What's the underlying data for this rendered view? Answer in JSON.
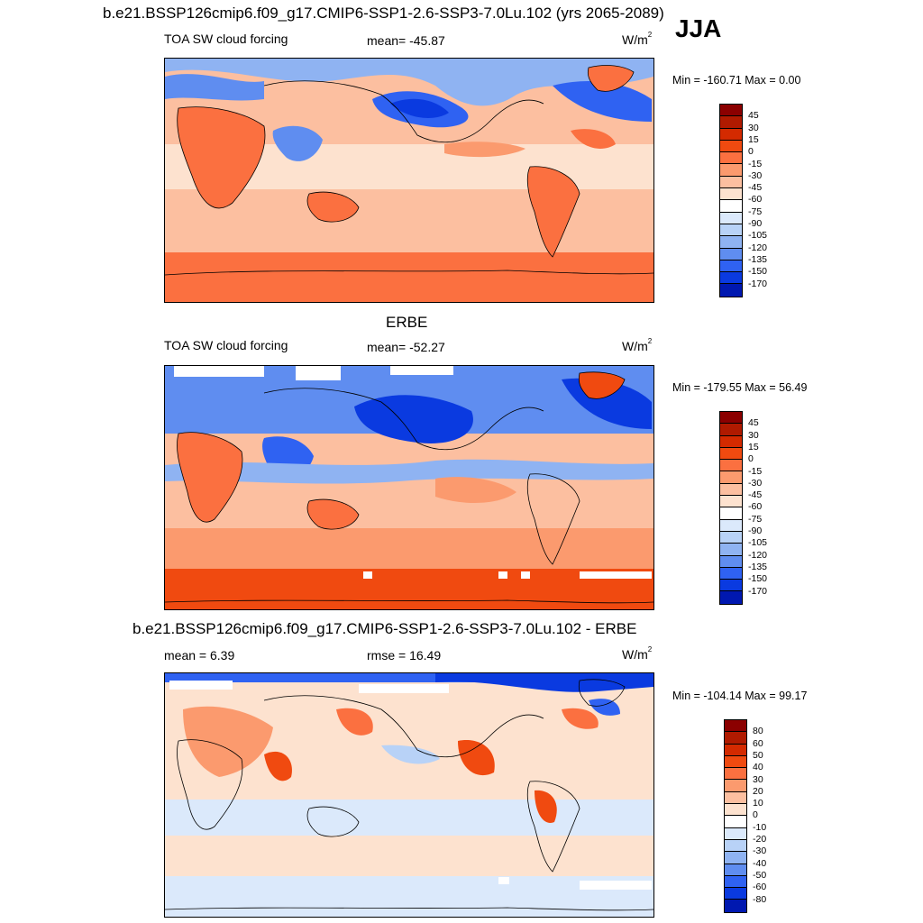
{
  "season": "JJA",
  "panels": [
    {
      "title": "b.e21.BSSP126cmip6.f09_g17.CMIP6-SSP1-2.6-SSP3-7.0Lu.102 (yrs 2065-2089)",
      "left_label": "TOA SW cloud forcing",
      "center_label": "mean= -45.87",
      "unit_base": "W/m",
      "unit_exp": "2",
      "minmax": "Min = -160.71 Max =   0.00",
      "colorbar_id": "fields"
    },
    {
      "title": "ERBE",
      "left_label": "TOA SW cloud forcing",
      "center_label": "mean= -52.27",
      "unit_base": "W/m",
      "unit_exp": "2",
      "minmax": "Min = -179.55 Max =  56.49",
      "colorbar_id": "fields"
    },
    {
      "title": "b.e21.BSSP126cmip6.f09_g17.CMIP6-SSP1-2.6-SSP3-7.0Lu.102 - ERBE",
      "left_label": "mean =   6.39",
      "center_label": "rmse =  16.49",
      "unit_base": "W/m",
      "unit_exp": "2",
      "minmax": "Min = -104.14 Max =  99.17",
      "colorbar_id": "diff"
    }
  ],
  "colorbars": {
    "fields": {
      "labels": [
        "45",
        "30",
        "15",
        "0",
        "-15",
        "-30",
        "-45",
        "-60",
        "-75",
        "-90",
        "-105",
        "-120",
        "-135",
        "-150",
        "-170"
      ],
      "colors": [
        "#8b0000",
        "#b01a00",
        "#d42a00",
        "#f04a10",
        "#fb7040",
        "#fb9a6e",
        "#fcbfa0",
        "#fde2cf",
        "#ffffff",
        "#dbe9fb",
        "#b8d2f7",
        "#8fb3f2",
        "#5f8df0",
        "#2f62f2",
        "#0a3ae0",
        "#0018b0"
      ]
    },
    "diff": {
      "labels": [
        "80",
        "60",
        "50",
        "40",
        "30",
        "20",
        "10",
        "0",
        "-10",
        "-20",
        "-30",
        "-40",
        "-50",
        "-60",
        "-80"
      ],
      "colors": [
        "#8b0000",
        "#b01a00",
        "#d42a00",
        "#f04a10",
        "#fb7040",
        "#fb9a6e",
        "#fcbfa0",
        "#fde2cf",
        "#ffffff",
        "#dbe9fb",
        "#b8d2f7",
        "#8fb3f2",
        "#5f8df0",
        "#2f62f2",
        "#0a3ae0",
        "#0018b0"
      ]
    }
  }
}
